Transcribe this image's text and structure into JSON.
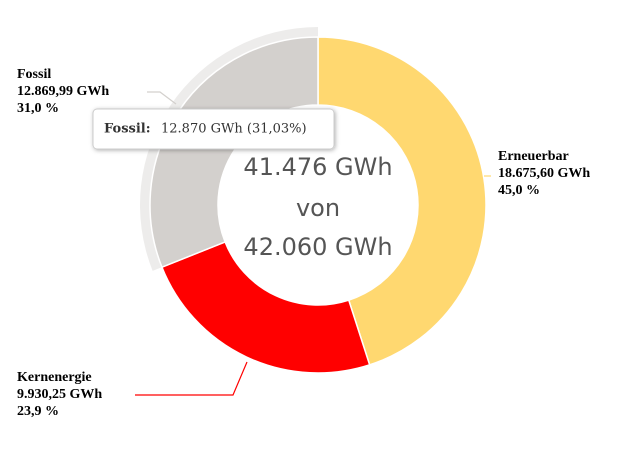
{
  "chart_data": {
    "type": "donut",
    "categories": [
      "Erneuerbar",
      "Kernenergie",
      "Fossil"
    ],
    "values": [
      18675.6,
      9930.25,
      12869.99
    ],
    "value_labels": [
      "18.675,60 GWh",
      "9.930,25 GWh",
      "12.869,99 GWh"
    ],
    "percents": [
      45.0,
      23.9,
      31.0
    ],
    "percent_labels": [
      "45,0 %",
      "23,9 %",
      "31,0 %"
    ],
    "colors": [
      "#ffd870",
      "#ff0000",
      "#d3d0cd"
    ],
    "center_text": [
      "41.476 GWh",
      "von",
      "42.060 GWh"
    ],
    "tooltip": {
      "label": "Fossil:",
      "text": "12.870 GWh (31,03%)"
    }
  }
}
